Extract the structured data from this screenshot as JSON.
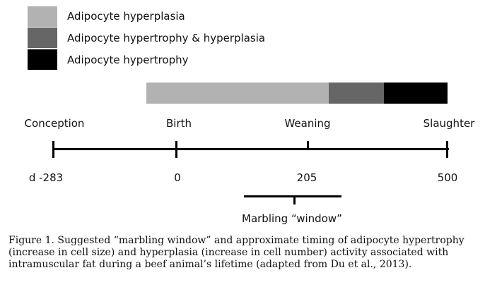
{
  "legend": {
    "items": [
      {
        "label": "Adipocyte hyperplasia",
        "color": "#b2b2b2"
      },
      {
        "label": "Adipocyte hypertrophy & hyperplasia",
        "color": "#666666"
      },
      {
        "label": "Adipocyte hypertrophy",
        "color": "#000000"
      }
    ]
  },
  "timeline": {
    "events": {
      "conception": "Conception",
      "birth": "Birth",
      "weaning": "Weaning",
      "slaughter": "Slaughter"
    },
    "days": {
      "conception": "d -283",
      "birth": "0",
      "weaning": "205",
      "slaughter": "500"
    },
    "marbling_window_label": "Marbling “window”"
  },
  "caption": "Figure 1. Suggested “marbling window” and approximate timing of adipocyte hypertrophy (increase in cell size) and hyperplasia (increase in cell number) activity associated with intramuscular fat during a beef animal’s lifetime (adapted from Du et al., 2013)."
}
